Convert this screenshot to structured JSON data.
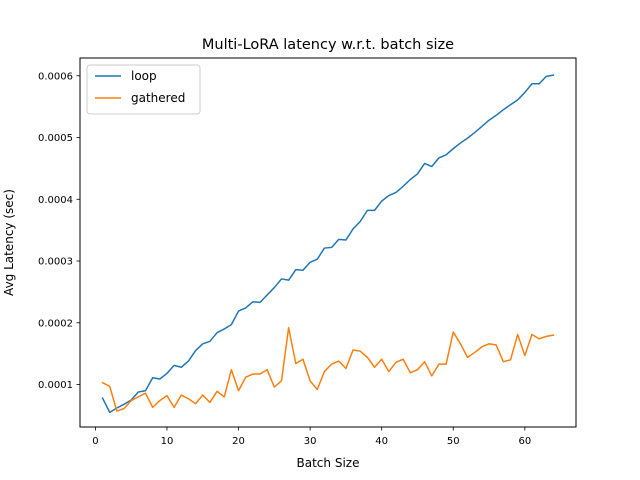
{
  "chart_data": {
    "type": "line",
    "title": "Multi-LoRA latency w.r.t. batch size",
    "xlabel": "Batch Size",
    "ylabel": "Avg Latency (sec)",
    "xlim": [
      -2.15,
      67.15
    ],
    "ylim": [
      3.125e-05,
      0.00062875
    ],
    "xticks": [
      0,
      10,
      20,
      30,
      40,
      50,
      60
    ],
    "xtick_labels": [
      "0",
      "10",
      "20",
      "30",
      "40",
      "50",
      "60"
    ],
    "yticks": [
      0.0001,
      0.0002,
      0.0003,
      0.0004,
      0.0005,
      0.0006
    ],
    "ytick_labels": [
      "0.0001",
      "0.0002",
      "0.0003",
      "0.0004",
      "0.0005",
      "0.0006"
    ],
    "grid": false,
    "legend_position": "upper-left",
    "x": [
      1,
      2,
      3,
      4,
      5,
      6,
      7,
      8,
      9,
      10,
      11,
      12,
      13,
      14,
      15,
      16,
      17,
      18,
      19,
      20,
      21,
      22,
      23,
      24,
      25,
      26,
      27,
      28,
      29,
      30,
      31,
      32,
      33,
      34,
      35,
      36,
      37,
      38,
      39,
      40,
      41,
      42,
      43,
      44,
      45,
      46,
      47,
      48,
      49,
      50,
      51,
      52,
      53,
      54,
      55,
      56,
      57,
      58,
      59,
      60,
      61,
      62,
      63,
      64
    ],
    "series": [
      {
        "name": "loop",
        "color": "#1f77b4",
        "values": [
          7.8e-05,
          5.5e-05,
          6.2e-05,
          6.8e-05,
          7.5e-05,
          8.8e-05,
          9e-05,
          0.000111,
          0.000109,
          0.000118,
          0.000131,
          0.000128,
          0.000138,
          0.000155,
          0.000166,
          0.00017,
          0.000184,
          0.00019,
          0.000197,
          0.000219,
          0.000224,
          0.000234,
          0.000233,
          0.000245,
          0.000257,
          0.000271,
          0.000269,
          0.000286,
          0.000285,
          0.000298,
          0.000303,
          0.000321,
          0.000322,
          0.000335,
          0.000334,
          0.000352,
          0.000364,
          0.000382,
          0.000382,
          0.000397,
          0.000406,
          0.000411,
          0.000421,
          0.000432,
          0.000441,
          0.000458,
          0.000453,
          0.000467,
          0.000472,
          0.000482,
          0.000491,
          0.000499,
          0.000508,
          0.000518,
          0.000528,
          0.000536,
          0.000545,
          0.000553,
          0.000561,
          0.000573,
          0.000587,
          0.000587,
          0.000599,
          0.000601
        ]
      },
      {
        "name": "gathered",
        "color": "#ff7f0e",
        "values": [
          0.000103,
          9.7e-05,
          5.7e-05,
          6.1e-05,
          7.4e-05,
          8e-05,
          8.6e-05,
          6.3e-05,
          7.4e-05,
          8.2e-05,
          6.3e-05,
          8.3e-05,
          7.7e-05,
          6.9e-05,
          8.3e-05,
          7.1e-05,
          8.9e-05,
          8e-05,
          0.000124,
          9e-05,
          0.000112,
          0.000117,
          0.000117,
          0.000124,
          9.6e-05,
          0.000106,
          0.000192,
          0.000134,
          0.000141,
          0.000106,
          9.2e-05,
          0.000121,
          0.000133,
          0.000138,
          0.000126,
          0.000156,
          0.000154,
          0.000144,
          0.000128,
          0.000141,
          0.000121,
          0.000136,
          0.000141,
          0.000119,
          0.000124,
          0.000137,
          0.000114,
          0.000133,
          0.000133,
          0.000185,
          0.000166,
          0.000144,
          0.000152,
          0.000161,
          0.000166,
          0.000164,
          0.000137,
          0.00014,
          0.000181,
          0.000147,
          0.000181,
          0.000174,
          0.000178,
          0.00018
        ]
      }
    ]
  }
}
